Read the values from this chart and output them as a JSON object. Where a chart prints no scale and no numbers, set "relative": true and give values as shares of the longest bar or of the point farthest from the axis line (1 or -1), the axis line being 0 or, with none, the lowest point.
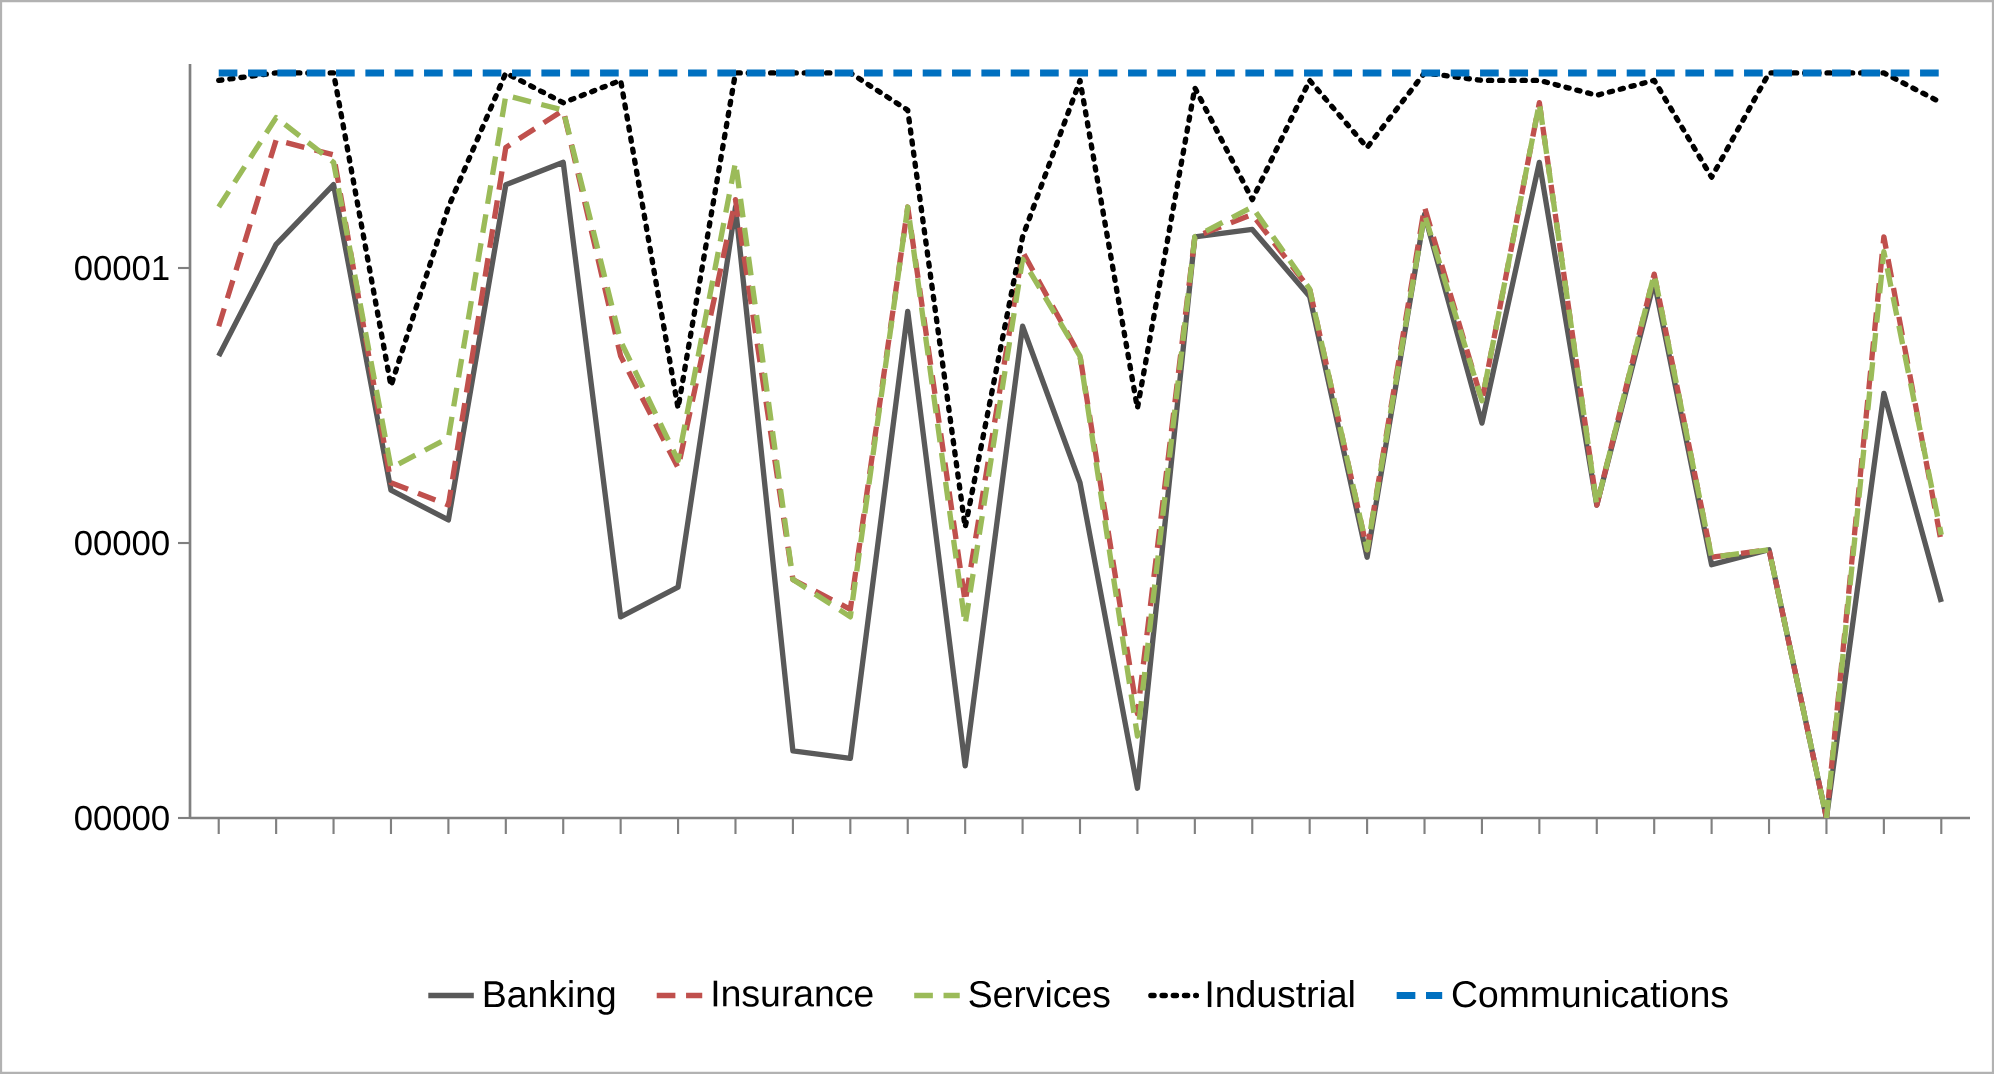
{
  "chart_data": {
    "type": "line",
    "relative": true,
    "categories": [
      null,
      null,
      null,
      null,
      null,
      null,
      null,
      null,
      null,
      null,
      null,
      null,
      null,
      null,
      null,
      null,
      null,
      null,
      null,
      null,
      null,
      null,
      null,
      null,
      null,
      null,
      null,
      null,
      null,
      null,
      null
    ],
    "annotations": [
      "00000",
      "00000",
      "00001"
    ],
    "legend": "bottom",
    "grid": false,
    "marker": "none",
    "series": [
      {
        "name": "Banking",
        "color": "#595959",
        "line_style": "solid",
        "values": [
          0.62,
          0.77,
          0.85,
          0.44,
          0.4,
          0.85,
          0.88,
          0.27,
          0.31,
          0.82,
          0.09,
          0.08,
          0.68,
          0.07,
          0.66,
          0.45,
          0.04,
          0.78,
          0.79,
          0.7,
          0.35,
          0.81,
          0.53,
          0.88,
          0.42,
          0.72,
          0.34,
          0.36,
          0,
          0.57,
          0.29
        ]
      },
      {
        "name": "Insurance",
        "color": "#c0504d",
        "line_style": "dashed",
        "values": [
          0.66,
          0.91,
          0.89,
          0.45,
          0.42,
          0.9,
          0.95,
          0.62,
          0.47,
          0.83,
          0.32,
          0.28,
          0.82,
          0.29,
          0.76,
          0.62,
          0.14,
          0.78,
          0.81,
          0.71,
          0.36,
          0.82,
          0.56,
          0.96,
          0.42,
          0.73,
          0.35,
          0.36,
          0,
          0.78,
          0.37
        ]
      },
      {
        "name": "Services",
        "color": "#9bbb59",
        "line_style": "dashed",
        "values": [
          0.82,
          0.94,
          0.88,
          0.47,
          0.51,
          0.97,
          0.95,
          0.64,
          0.48,
          0.88,
          0.32,
          0.27,
          0.82,
          0.26,
          0.75,
          0.62,
          0.11,
          0.78,
          0.82,
          0.71,
          0.36,
          0.81,
          0.56,
          0.96,
          0.42,
          0.73,
          0.35,
          0.36,
          0,
          0.76,
          0.38
        ]
      },
      {
        "name": "Industrial",
        "color": "#000000",
        "line_style": "dotted",
        "values": [
          0.99,
          1,
          1,
          0.58,
          0.82,
          1,
          0.96,
          0.99,
          0.55,
          1,
          1,
          1,
          0.95,
          0.39,
          0.78,
          0.99,
          0.55,
          0.98,
          0.83,
          0.99,
          0.9,
          1,
          0.99,
          0.99,
          0.97,
          0.99,
          0.86,
          1,
          1,
          1,
          0.96
        ]
      },
      {
        "name": "Communications",
        "color": "#0070c0",
        "line_style": "dashed",
        "values": [
          1,
          1,
          1,
          1,
          1,
          1,
          1,
          1,
          1,
          1,
          1,
          1,
          1,
          1,
          1,
          1,
          1,
          1,
          1,
          1,
          1,
          1,
          1,
          1,
          1,
          1,
          1,
          1,
          1,
          1,
          1
        ]
      }
    ]
  }
}
